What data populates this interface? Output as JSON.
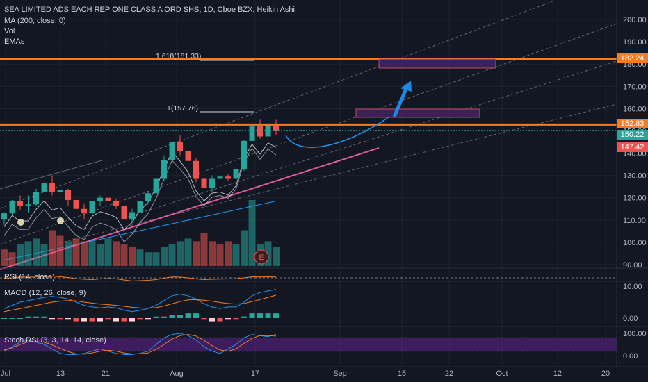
{
  "header": {
    "title": "SEA LIMITED ADS EACH REP ONE CLASS A ORD SHS, 1D, Cboe BZX, Heikin Ashi",
    "indicators": [
      "MA (200, close, 0)",
      "Vol",
      "EMAs"
    ]
  },
  "annotations": {
    "fib_1618": "1.618(181.33)",
    "fib_1": "1(157.76)",
    "earnings_marker": "E"
  },
  "price_badges": [
    {
      "label": "182.24",
      "value": 182.24,
      "color": "#f57c22"
    },
    {
      "label": "152.83",
      "value": 152.83,
      "color": "#f57c22"
    },
    {
      "label": "150.22",
      "value": 150.22,
      "color": "#26a69a"
    },
    {
      "label": "147.42",
      "value": 147.42,
      "color": "#ef5350"
    }
  ],
  "panes": {
    "rsi_title": "RSI (14, close)",
    "macd_title": "MACD (12, 26, close, 9)",
    "stoch_title": "Stoch RSI (3, 3, 14, 14, close)"
  },
  "colors": {
    "up": "#26a69a",
    "down": "#ef5350",
    "horizontal_level": "#f57c22",
    "trendline": "#e05aa0",
    "projection": "#2196f3",
    "stoch_band": "#4a1f6e"
  },
  "chart_data": [
    {
      "type": "candlestick",
      "subtype": "Heikin Ashi",
      "x_ticks": [
        "Jul",
        "13",
        "21",
        "Aug",
        "17",
        "Sep",
        "15",
        "22",
        "Oct",
        "12",
        "20"
      ],
      "y_ticks": [
        "200.00",
        "190.00",
        "180.00",
        "170.00",
        "160.00",
        "150.00",
        "140.00",
        "130.00",
        "120.00",
        "110.00",
        "100.00",
        "90.00"
      ],
      "ylim": [
        88,
        204
      ],
      "ohlc": [
        {
          "o": 110.5,
          "h": 113.5,
          "l": 107.8,
          "c": 113.0
        },
        {
          "o": 113.0,
          "h": 119.0,
          "l": 112.5,
          "c": 118.5
        },
        {
          "o": 118.5,
          "h": 121.0,
          "l": 114.5,
          "c": 116.5
        },
        {
          "o": 116.5,
          "h": 121.0,
          "l": 113.5,
          "c": 117.0
        },
        {
          "o": 117.0,
          "h": 124.0,
          "l": 116.5,
          "c": 122.5
        },
        {
          "o": 122.5,
          "h": 128.0,
          "l": 121.0,
          "c": 126.5
        },
        {
          "o": 126.5,
          "h": 130.0,
          "l": 121.0,
          "c": 122.5
        },
        {
          "o": 122.5,
          "h": 124.5,
          "l": 117.5,
          "c": 123.5
        },
        {
          "o": 123.5,
          "h": 124.0,
          "l": 116.5,
          "c": 119.0
        },
        {
          "o": 119.0,
          "h": 120.5,
          "l": 112.5,
          "c": 115.0
        },
        {
          "o": 115.0,
          "h": 117.5,
          "l": 110.5,
          "c": 113.0
        },
        {
          "o": 113.0,
          "h": 119.0,
          "l": 112.0,
          "c": 118.5
        },
        {
          "o": 118.5,
          "h": 121.0,
          "l": 116.5,
          "c": 120.0
        },
        {
          "o": 120.0,
          "h": 123.0,
          "l": 117.0,
          "c": 118.5
        },
        {
          "o": 118.5,
          "h": 119.5,
          "l": 115.0,
          "c": 116.5
        },
        {
          "o": 116.5,
          "h": 118.0,
          "l": 103.5,
          "c": 110.5
        },
        {
          "o": 110.5,
          "h": 115.0,
          "l": 108.5,
          "c": 113.5
        },
        {
          "o": 113.5,
          "h": 120.0,
          "l": 113.0,
          "c": 118.5
        },
        {
          "o": 118.5,
          "h": 123.0,
          "l": 117.5,
          "c": 122.0
        },
        {
          "o": 122.0,
          "h": 129.0,
          "l": 121.0,
          "c": 128.5
        },
        {
          "o": 128.5,
          "h": 139.0,
          "l": 127.5,
          "c": 137.0
        },
        {
          "o": 137.0,
          "h": 146.0,
          "l": 135.0,
          "c": 145.0
        },
        {
          "o": 145.0,
          "h": 148.0,
          "l": 139.0,
          "c": 141.0
        },
        {
          "o": 141.0,
          "h": 142.0,
          "l": 134.0,
          "c": 136.5
        },
        {
          "o": 136.5,
          "h": 138.0,
          "l": 127.0,
          "c": 128.5
        },
        {
          "o": 128.5,
          "h": 132.0,
          "l": 120.0,
          "c": 124.5
        },
        {
          "o": 124.5,
          "h": 130.0,
          "l": 122.5,
          "c": 128.5
        },
        {
          "o": 128.5,
          "h": 131.0,
          "l": 126.5,
          "c": 129.5
        },
        {
          "o": 129.5,
          "h": 130.5,
          "l": 127.5,
          "c": 128.5
        },
        {
          "o": 128.5,
          "h": 135.0,
          "l": 127.5,
          "c": 133.0
        },
        {
          "o": 133.0,
          "h": 146.0,
          "l": 132.0,
          "c": 145.5
        },
        {
          "o": 145.5,
          "h": 154.0,
          "l": 144.5,
          "c": 152.0
        },
        {
          "o": 152.0,
          "h": 155.0,
          "l": 146.5,
          "c": 147.5
        },
        {
          "o": 147.5,
          "h": 154.5,
          "l": 146.0,
          "c": 152.5
        },
        {
          "o": 152.5,
          "h": 155.0,
          "l": 148.0,
          "c": 150.2
        }
      ],
      "horizontal_levels": [
        182.24,
        152.83
      ],
      "last_price": 150.22
    },
    {
      "type": "bar",
      "name": "Volume",
      "values": [
        6,
        5,
        8,
        9,
        10,
        8,
        13,
        11,
        9,
        10,
        9,
        9,
        8,
        10,
        9,
        8,
        7,
        6,
        5,
        5,
        7,
        8,
        9,
        10,
        9,
        12,
        9,
        8,
        9,
        8,
        13,
        24,
        8,
        9,
        7
      ],
      "colors": [
        "down",
        "down",
        "up",
        "up",
        "up",
        "up",
        "down",
        "down",
        "up",
        "down",
        "down",
        "up",
        "up",
        "up",
        "down",
        "down",
        "down",
        "up",
        "up",
        "up",
        "up",
        "up",
        "up",
        "up",
        "down",
        "down",
        "down",
        "down",
        "down",
        "up",
        "up",
        "up",
        "up",
        "up",
        "up"
      ]
    },
    {
      "type": "line",
      "name": "RSI (14, close)",
      "ylim": [
        0,
        100
      ],
      "values": [
        48,
        50,
        55,
        54,
        55,
        58,
        60,
        56,
        52,
        45,
        42,
        40,
        44,
        46,
        44,
        38,
        32,
        34,
        36,
        40,
        48,
        55,
        54,
        50,
        44,
        40,
        42,
        43,
        44,
        45,
        50,
        56,
        55,
        56,
        55
      ]
    },
    {
      "type": "line",
      "name": "MACD (12, 26, close, 9)",
      "y_ticks": [
        "10.00",
        "0.00"
      ],
      "ylim": [
        -2,
        12
      ],
      "series": [
        {
          "values": [
            3,
            4,
            5,
            5.5,
            6,
            6.5,
            6.8,
            6.5,
            6,
            5,
            4,
            3.5,
            3.2,
            3.5,
            3.2,
            2.5,
            2,
            2.5,
            3,
            4,
            5.5,
            7,
            7.5,
            7,
            6,
            4.5,
            3.5,
            3,
            3.5,
            3.5,
            5,
            7,
            8,
            8.5,
            9
          ]
        },
        {
          "values": [
            2,
            2.5,
            3,
            3.5,
            4,
            4.5,
            5,
            5.3,
            5.5,
            5.4,
            5,
            4.7,
            4.4,
            4.2,
            4,
            3.7,
            3.4,
            3.2,
            3.1,
            3.3,
            3.8,
            4.5,
            5.2,
            5.7,
            5.8,
            5.6,
            5.3,
            4.9,
            4.6,
            4.4,
            4.6,
            5.2,
            5.8,
            6.5,
            7.2
          ]
        }
      ],
      "histogram": [
        0,
        0,
        0,
        0.5,
        0.5,
        0.5,
        -0.5,
        -0.5,
        -0.5,
        -1,
        -1,
        -1,
        -1,
        -0.5,
        -1,
        -1,
        -1,
        -0.5,
        -0.5,
        0.5,
        0.5,
        1,
        1,
        1.5,
        1.5,
        -0.5,
        -1,
        -1,
        -0.5,
        -0.5,
        0.5,
        1.5,
        1.5,
        1.5,
        1.5
      ]
    },
    {
      "type": "line",
      "name": "Stoch RSI (3, 3, 14, 14, close)",
      "y_ticks": [
        "100.00",
        "0.00"
      ],
      "ylim": [
        -5,
        105
      ],
      "series": [
        {
          "values": [
            20,
            40,
            60,
            70,
            60,
            50,
            30,
            10,
            5,
            5,
            10,
            20,
            30,
            20,
            10,
            5,
            5,
            10,
            20,
            50,
            80,
            95,
            100,
            90,
            70,
            40,
            20,
            10,
            30,
            50,
            80,
            95,
            90,
            85,
            95
          ]
        },
        {
          "values": [
            25,
            35,
            50,
            62,
            63,
            60,
            48,
            32,
            18,
            8,
            7,
            12,
            20,
            24,
            20,
            12,
            8,
            8,
            12,
            28,
            50,
            75,
            90,
            95,
            88,
            68,
            45,
            25,
            20,
            30,
            55,
            78,
            90,
            90,
            88
          ]
        }
      ]
    }
  ]
}
